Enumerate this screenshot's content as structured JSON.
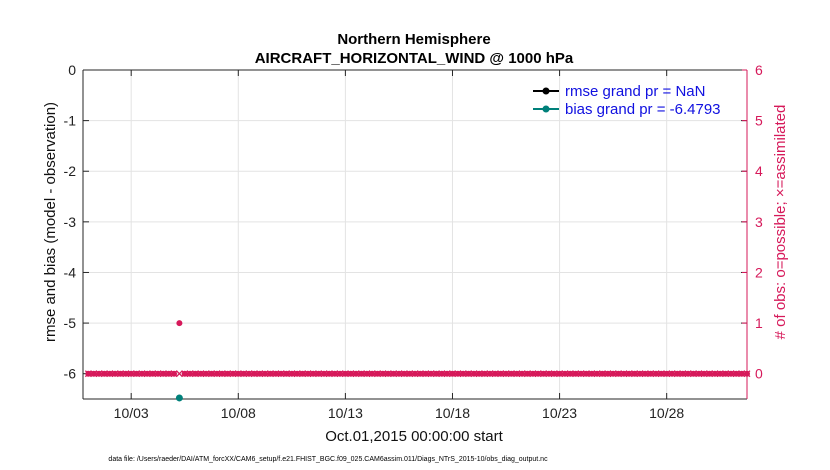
{
  "chart_data": {
    "type": "line",
    "title": "Northern Hemisphere",
    "subtitle": "AIRCRAFT_HORIZONTAL_WIND @ 1000 hPa",
    "xlabel": "Oct.01,2015 00:00:00 start",
    "ylabel": "rmse and bias (model - observation)",
    "ylabel_right": "# of obs: o=possible; ×=assimilated",
    "footer": "data file: /Users/raeder/DAI/ATM_forcXX/CAM6_setup/f.e21.FHIST_BGC.f09_025.CAM6assim.011/Diags_NTrS_2015-10/obs_diag_output.nc",
    "x_tick_labels": [
      "10/03",
      "10/08",
      "10/13",
      "10/18",
      "10/23",
      "10/28"
    ],
    "x_tick_days": [
      3,
      8,
      13,
      18,
      23,
      28
    ],
    "xlim_days": [
      0.75,
      31.75
    ],
    "ylim": [
      -6.5,
      0
    ],
    "y_ticks": [
      0,
      -1,
      -2,
      -3,
      -4,
      -5,
      -6
    ],
    "ylim_right": [
      -0.5,
      6
    ],
    "y_ticks_right": [
      0,
      1,
      2,
      3,
      4,
      5,
      6
    ],
    "grid": true,
    "legend_location": "top-right",
    "series": [
      {
        "name": "rmse grand pr = NaN",
        "color": "#000000",
        "marker": "circle",
        "axis": "left",
        "points": []
      },
      {
        "name": "bias grand pr = -6.4793",
        "color": "#00807a",
        "marker": "circle",
        "axis": "left",
        "points": [
          {
            "x": 5.25,
            "y": -6.4793
          }
        ]
      }
    ],
    "obs_possible": {
      "color": "#d6195a",
      "marker": "circle",
      "axis": "right",
      "x_start_day": 1.0,
      "x_end_day": 31.75,
      "x_step_day": 0.25,
      "value": 0,
      "exceptions": [
        {
          "x": 5.25,
          "y": 1
        }
      ]
    },
    "obs_assimilated": {
      "color": "#d6195a",
      "marker": "x",
      "axis": "right",
      "x_start_day": 1.0,
      "x_end_day": 31.75,
      "x_step_day": 0.25,
      "value": 0
    },
    "colors": {
      "axis_right": "#d6195a",
      "legend_text": "#1010e0",
      "grid": "#e3e3e3"
    }
  }
}
